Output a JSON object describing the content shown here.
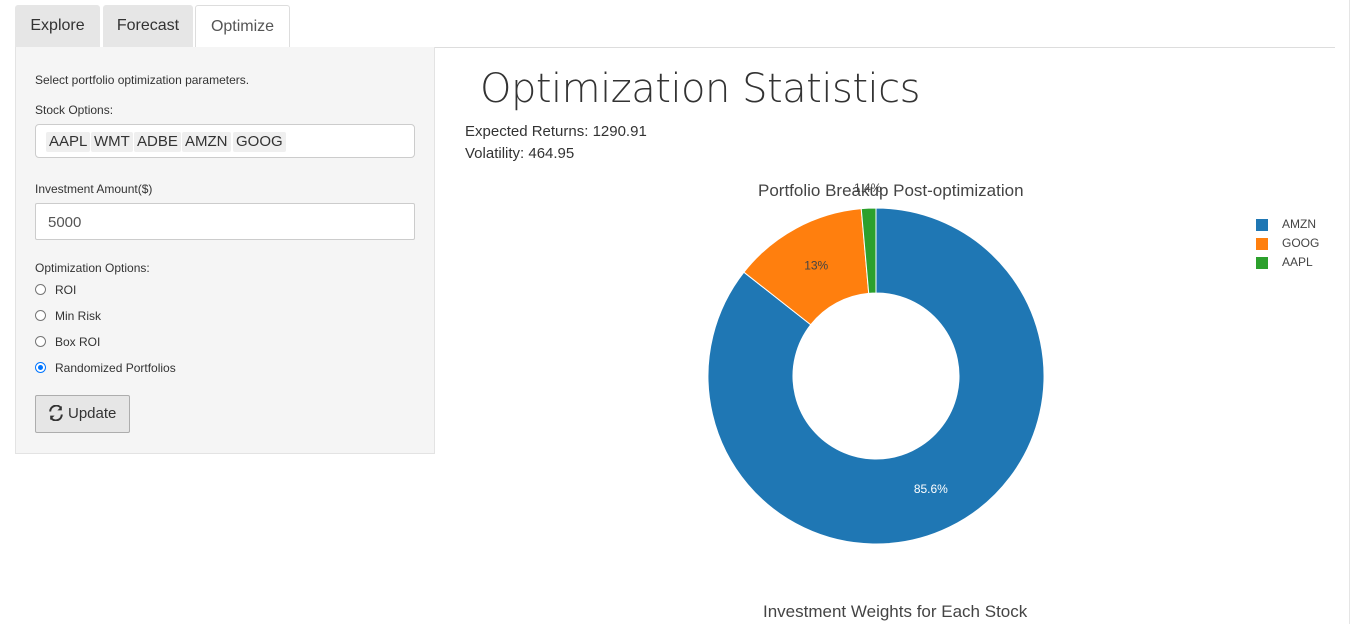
{
  "tabs": [
    {
      "label": "Explore"
    },
    {
      "label": "Forecast"
    },
    {
      "label": "Optimize"
    }
  ],
  "sidebar": {
    "intro": "Select portfolio optimization parameters.",
    "stock_label": "Stock Options:",
    "stocks": [
      "AAPL",
      "WMT",
      "ADBE",
      "AMZN",
      "GOOG"
    ],
    "amount_label": "Investment Amount($)",
    "amount_value": "5000",
    "opt_label": "Optimization Options:",
    "options": [
      {
        "label": "ROI",
        "checked": false
      },
      {
        "label": "Min Risk",
        "checked": false
      },
      {
        "label": "Box ROI",
        "checked": false
      },
      {
        "label": "Randomized Portfolios",
        "checked": true
      }
    ],
    "update_label": "Update"
  },
  "main": {
    "title": "Optimization Statistics",
    "expected_returns": "Expected Returns: 1290.91",
    "volatility": "Volatility: 464.95",
    "chart2_title": "Investment Weights for Each Stock"
  },
  "chart_data": {
    "type": "pie",
    "title": "Portfolio Breakup Post-optimization",
    "donut": true,
    "slices": [
      {
        "label": "AMZN",
        "value": 85.6,
        "text": "85.6%",
        "color": "#1f77b4"
      },
      {
        "label": "GOOG",
        "value": 13,
        "text": "13%",
        "color": "#ff7f0e"
      },
      {
        "label": "AAPL",
        "value": 1.4,
        "text": "1.4%",
        "color": "#2ca02c"
      }
    ],
    "legend_position": "top-right"
  }
}
